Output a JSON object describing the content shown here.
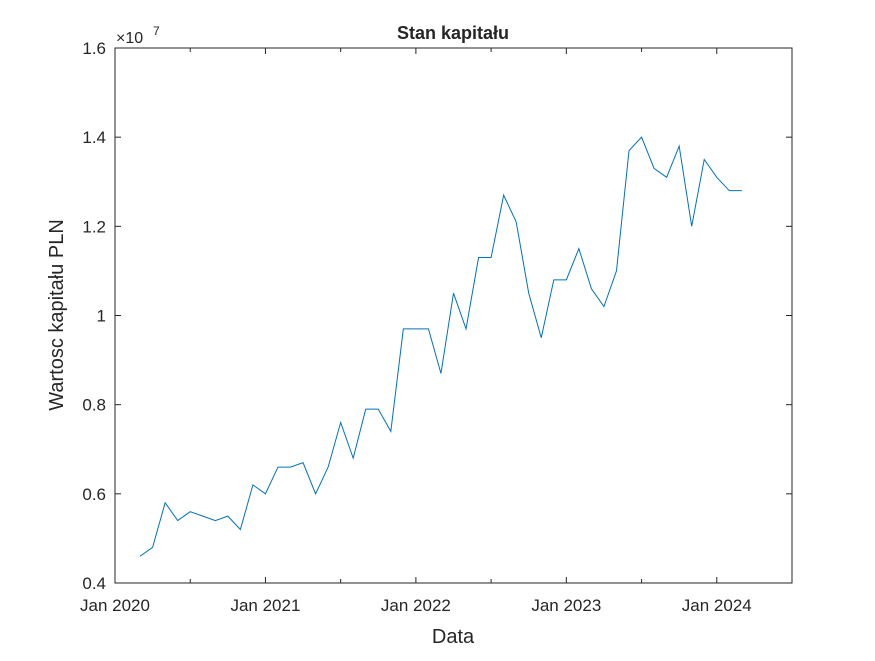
{
  "chart_data": {
    "type": "line",
    "title": "Stan kapitału",
    "xlabel": "Data",
    "ylabel": "Wartosc kapitału PLN",
    "y_multiplier": "×10",
    "y_exponent": 7,
    "x": [
      "2020-03",
      "2020-04",
      "2020-05",
      "2020-06",
      "2020-07",
      "2020-08",
      "2020-09",
      "2020-10",
      "2020-11",
      "2020-12",
      "2021-01",
      "2021-02",
      "2021-03",
      "2021-04",
      "2021-05",
      "2021-06",
      "2021-07",
      "2021-08",
      "2021-09",
      "2021-10",
      "2021-11",
      "2021-12",
      "2022-01",
      "2022-02",
      "2022-03",
      "2022-04",
      "2022-05",
      "2022-06",
      "2022-07",
      "2022-08",
      "2022-09",
      "2022-10",
      "2022-11",
      "2022-12",
      "2023-01",
      "2023-02",
      "2023-03",
      "2023-04",
      "2023-05",
      "2023-06",
      "2023-07",
      "2023-08",
      "2023-09",
      "2023-10",
      "2023-11",
      "2023-12",
      "2024-01",
      "2024-02",
      "2024-03"
    ],
    "series": [
      {
        "name": "Stan kapitału",
        "color": "#0072bd",
        "values": [
          0.46,
          0.48,
          0.58,
          0.54,
          0.56,
          0.55,
          0.54,
          0.55,
          0.52,
          0.62,
          0.6,
          0.66,
          0.66,
          0.67,
          0.6,
          0.66,
          0.76,
          0.68,
          0.79,
          0.79,
          0.74,
          0.97,
          0.97,
          0.97,
          0.87,
          1.05,
          0.97,
          1.13,
          1.13,
          1.27,
          1.21,
          1.05,
          0.95,
          1.08,
          1.08,
          1.15,
          1.06,
          1.02,
          1.1,
          1.37,
          1.4,
          1.33,
          1.31,
          1.38,
          1.2,
          1.35,
          1.31,
          1.28,
          1.28
        ]
      }
    ],
    "xlim": [
      "2020-01",
      "2024-07"
    ],
    "xticks": [
      {
        "value": "2020-01",
        "label": "Jan 2020"
      },
      {
        "value": "2021-01",
        "label": "Jan 2021"
      },
      {
        "value": "2022-01",
        "label": "Jan 2022"
      },
      {
        "value": "2023-01",
        "label": "Jan 2023"
      },
      {
        "value": "2024-01",
        "label": "Jan 2024"
      }
    ],
    "xminorticks": [
      "2020-07",
      "2021-07",
      "2022-07",
      "2023-07"
    ],
    "ylim": [
      0.4,
      1.6
    ],
    "yticks": [
      0.4,
      0.6,
      0.8,
      1,
      1.2,
      1.4,
      1.6
    ]
  }
}
